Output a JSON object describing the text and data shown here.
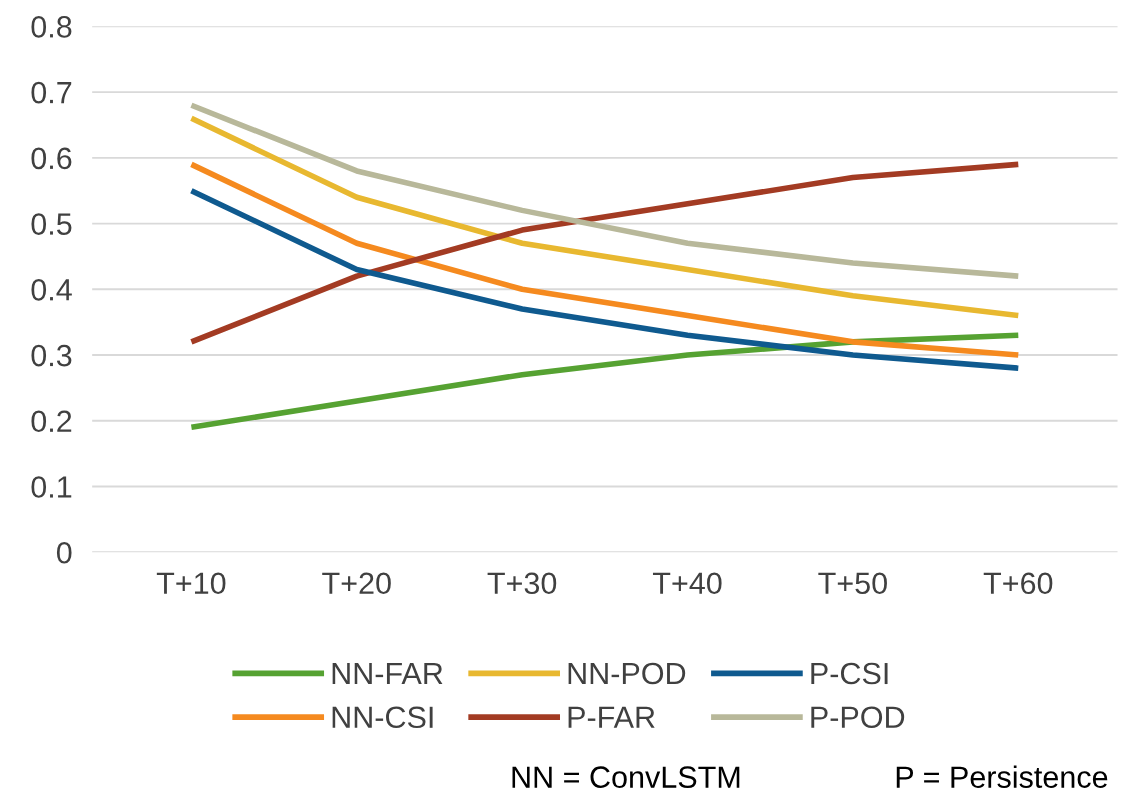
{
  "chart_data": {
    "type": "line",
    "categories": [
      "T+10",
      "T+20",
      "T+30",
      "T+40",
      "T+50",
      "T+60"
    ],
    "series": [
      {
        "name": "NN-FAR",
        "color": "#56a232",
        "values": [
          0.19,
          0.23,
          0.27,
          0.3,
          0.32,
          0.33
        ]
      },
      {
        "name": "NN-CSI",
        "color": "#f58a1f",
        "values": [
          0.59,
          0.47,
          0.4,
          0.36,
          0.32,
          0.3
        ]
      },
      {
        "name": "NN-POD",
        "color": "#e8b830",
        "values": [
          0.66,
          0.54,
          0.47,
          0.43,
          0.39,
          0.36
        ]
      },
      {
        "name": "P-FAR",
        "color": "#a33b23",
        "values": [
          0.32,
          0.42,
          0.49,
          0.53,
          0.57,
          0.59
        ]
      },
      {
        "name": "P-CSI",
        "color": "#0f5a8f",
        "values": [
          0.55,
          0.43,
          0.37,
          0.33,
          0.3,
          0.28
        ]
      },
      {
        "name": "P-POD",
        "color": "#b8b89a",
        "values": [
          0.68,
          0.58,
          0.52,
          0.47,
          0.44,
          0.42
        ]
      }
    ],
    "ylim": [
      0,
      0.8
    ],
    "yticks": [
      0,
      0.1,
      0.2,
      0.3,
      0.4,
      0.5,
      0.6,
      0.7,
      0.8
    ],
    "grid": "y",
    "legend": "bottom",
    "marker": "none",
    "line_style": "solid",
    "annotations": [
      "NN = ConvLSTM",
      "P = Persistence"
    ]
  }
}
